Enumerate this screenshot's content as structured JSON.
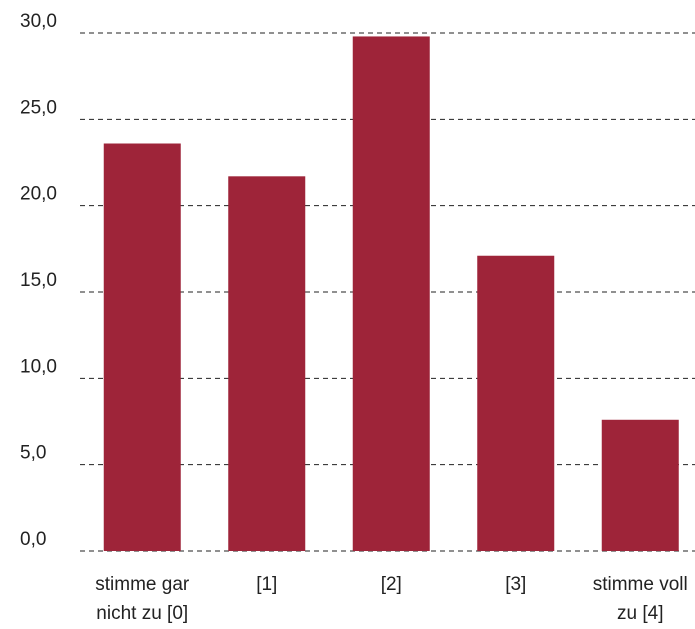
{
  "chart_data": {
    "type": "bar",
    "categories": [
      "stimme gar nicht zu [0]",
      "[1]",
      "[2]",
      "[3]",
      "stimme voll zu [4]"
    ],
    "category_lines": [
      [
        "stimme gar",
        "nicht zu [0]"
      ],
      [
        "[1]"
      ],
      [
        "[2]"
      ],
      [
        "[3]"
      ],
      [
        "stimme voll",
        "zu [4]"
      ]
    ],
    "values": [
      23.6,
      21.7,
      29.8,
      17.1,
      7.6
    ],
    "ylim": [
      0,
      30
    ],
    "y_ticks": [
      "0,0",
      "5,0",
      "10,0",
      "15,0",
      "20,0",
      "25,0",
      "30,0"
    ],
    "grid": true,
    "bar_color": "#9e2439",
    "title": "",
    "xlabel": "",
    "ylabel": ""
  }
}
